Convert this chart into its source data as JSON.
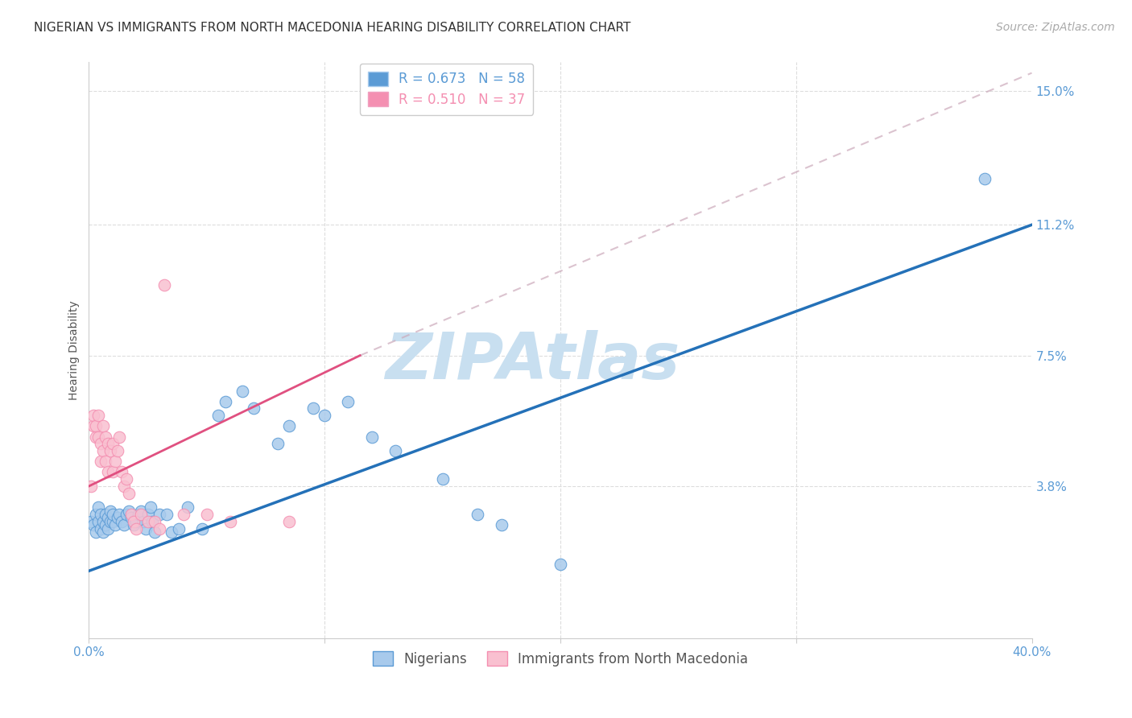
{
  "title": "NIGERIAN VS IMMIGRANTS FROM NORTH MACEDONIA HEARING DISABILITY CORRELATION CHART",
  "source": "Source: ZipAtlas.com",
  "ylabel": "Hearing Disability",
  "yticks": [
    0.0,
    0.038,
    0.075,
    0.112,
    0.15
  ],
  "ytick_labels": [
    "",
    "3.8%",
    "7.5%",
    "11.2%",
    "15.0%"
  ],
  "xmin": 0.0,
  "xmax": 0.4,
  "ymin": -0.005,
  "ymax": 0.158,
  "legend_entries": [
    {
      "label": "R = 0.673   N = 58",
      "color": "#5b9bd5"
    },
    {
      "label": "R = 0.510   N = 37",
      "color": "#f48fb1"
    }
  ],
  "legend_labels_bottom": [
    "Nigerians",
    "Immigrants from North Macedonia"
  ],
  "nigerian_scatter": [
    [
      0.001,
      0.028
    ],
    [
      0.002,
      0.027
    ],
    [
      0.003,
      0.025
    ],
    [
      0.003,
      0.03
    ],
    [
      0.004,
      0.028
    ],
    [
      0.004,
      0.032
    ],
    [
      0.005,
      0.026
    ],
    [
      0.005,
      0.03
    ],
    [
      0.006,
      0.028
    ],
    [
      0.006,
      0.025
    ],
    [
      0.007,
      0.027
    ],
    [
      0.007,
      0.03
    ],
    [
      0.008,
      0.026
    ],
    [
      0.008,
      0.029
    ],
    [
      0.009,
      0.028
    ],
    [
      0.009,
      0.031
    ],
    [
      0.01,
      0.028
    ],
    [
      0.01,
      0.03
    ],
    [
      0.011,
      0.027
    ],
    [
      0.012,
      0.029
    ],
    [
      0.013,
      0.03
    ],
    [
      0.014,
      0.028
    ],
    [
      0.015,
      0.027
    ],
    [
      0.016,
      0.03
    ],
    [
      0.017,
      0.031
    ],
    [
      0.018,
      0.029
    ],
    [
      0.019,
      0.027
    ],
    [
      0.02,
      0.028
    ],
    [
      0.021,
      0.03
    ],
    [
      0.022,
      0.031
    ],
    [
      0.023,
      0.028
    ],
    [
      0.024,
      0.026
    ],
    [
      0.025,
      0.03
    ],
    [
      0.026,
      0.032
    ],
    [
      0.027,
      0.028
    ],
    [
      0.028,
      0.025
    ],
    [
      0.03,
      0.03
    ],
    [
      0.033,
      0.03
    ],
    [
      0.035,
      0.025
    ],
    [
      0.038,
      0.026
    ],
    [
      0.042,
      0.032
    ],
    [
      0.048,
      0.026
    ],
    [
      0.055,
      0.058
    ],
    [
      0.058,
      0.062
    ],
    [
      0.065,
      0.065
    ],
    [
      0.07,
      0.06
    ],
    [
      0.08,
      0.05
    ],
    [
      0.085,
      0.055
    ],
    [
      0.095,
      0.06
    ],
    [
      0.1,
      0.058
    ],
    [
      0.11,
      0.062
    ],
    [
      0.12,
      0.052
    ],
    [
      0.13,
      0.048
    ],
    [
      0.15,
      0.04
    ],
    [
      0.165,
      0.03
    ],
    [
      0.175,
      0.027
    ],
    [
      0.2,
      0.016
    ],
    [
      0.38,
      0.125
    ]
  ],
  "macedonia_scatter": [
    [
      0.001,
      0.038
    ],
    [
      0.002,
      0.055
    ],
    [
      0.002,
      0.058
    ],
    [
      0.003,
      0.055
    ],
    [
      0.003,
      0.052
    ],
    [
      0.004,
      0.058
    ],
    [
      0.004,
      0.052
    ],
    [
      0.005,
      0.05
    ],
    [
      0.005,
      0.045
    ],
    [
      0.006,
      0.055
    ],
    [
      0.006,
      0.048
    ],
    [
      0.007,
      0.052
    ],
    [
      0.007,
      0.045
    ],
    [
      0.008,
      0.05
    ],
    [
      0.008,
      0.042
    ],
    [
      0.009,
      0.048
    ],
    [
      0.01,
      0.05
    ],
    [
      0.01,
      0.042
    ],
    [
      0.011,
      0.045
    ],
    [
      0.012,
      0.048
    ],
    [
      0.013,
      0.052
    ],
    [
      0.014,
      0.042
    ],
    [
      0.015,
      0.038
    ],
    [
      0.016,
      0.04
    ],
    [
      0.017,
      0.036
    ],
    [
      0.018,
      0.03
    ],
    [
      0.019,
      0.028
    ],
    [
      0.02,
      0.026
    ],
    [
      0.022,
      0.03
    ],
    [
      0.025,
      0.028
    ],
    [
      0.028,
      0.028
    ],
    [
      0.03,
      0.026
    ],
    [
      0.032,
      0.095
    ],
    [
      0.04,
      0.03
    ],
    [
      0.05,
      0.03
    ],
    [
      0.06,
      0.028
    ],
    [
      0.085,
      0.028
    ]
  ],
  "nigerian_line": {
    "x0": 0.0,
    "y0": 0.014,
    "x1": 0.4,
    "y1": 0.112
  },
  "macedonia_solid_line": {
    "x0": 0.0,
    "y0": 0.038,
    "x1": 0.115,
    "y1": 0.075
  },
  "macedonia_dash_line": {
    "x0": 0.0,
    "y0": 0.038,
    "x1": 0.4,
    "y1": 0.155
  },
  "scatter_size": 110,
  "nigerian_color": "#a8caec",
  "nigerian_edge_color": "#5b9bd5",
  "macedonia_color": "#f9c0d0",
  "macedonia_edge_color": "#f48fb1",
  "line_blue_color": "#2471b8",
  "line_pink_color": "#e05080",
  "line_dash_color": "#ccaabb",
  "background_color": "#ffffff",
  "watermark_text": "ZIPAtlas",
  "watermark_color": "#c8dff0",
  "title_fontsize": 11,
  "axis_label_fontsize": 10,
  "tick_fontsize": 11,
  "source_fontsize": 10
}
